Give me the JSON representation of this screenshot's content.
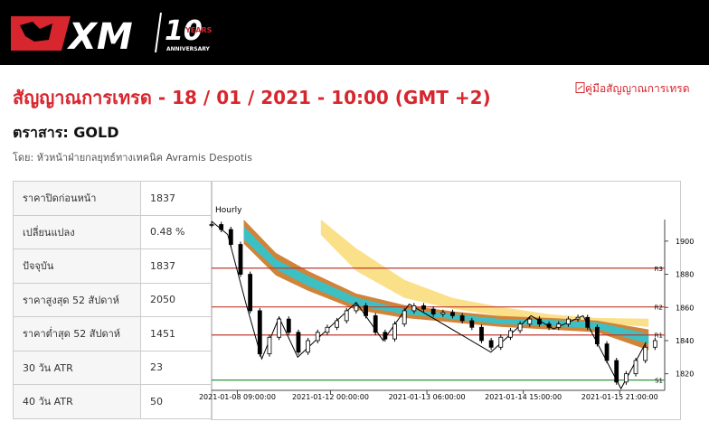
{
  "header": {
    "logo": "XM",
    "anniversary_number": "10",
    "anniversary_years": "YEARS",
    "anniversary_word": "ANNIVERSARY"
  },
  "title": "สัญญาณการเทรด - 18 / 01 / 2021 - 10:00 (GMT +2)",
  "guide_link": "คู่มือสัญญาณการเทรด",
  "instrument": "ตราสาร: GOLD",
  "author": "โดย: หัวหน้าฝ่ายกลยุทธ์ทางเทคนิค Avramis Despotis",
  "table": {
    "rows": [
      [
        "ราคาปิดก่อนหน้า",
        "1837"
      ],
      [
        "เปลี่ยนแปลง",
        "0.48 %"
      ],
      [
        "ปัจจุบัน",
        "1837"
      ],
      [
        "ราคาสูงสุด 52 สัปดาห์",
        "2050"
      ],
      [
        "ราคาต่ำสุด 52 สัปดาห์",
        "1451"
      ],
      [
        "30 วัน ATR",
        "23"
      ],
      [
        "40 วัน ATR",
        "50"
      ]
    ]
  },
  "chart_data": {
    "type": "candlestick",
    "subtitle": "Hourly",
    "x": [
      0,
      3,
      6,
      9,
      12,
      15,
      18,
      21,
      24,
      27,
      30,
      33,
      36,
      39,
      42,
      45,
      48,
      51,
      54,
      57,
      60,
      63,
      66,
      69,
      72,
      75,
      78,
      81,
      84,
      87,
      90,
      93,
      96,
      99,
      102,
      105,
      108,
      111,
      114,
      117,
      120,
      123,
      126,
      129,
      132,
      135,
      138
    ],
    "values": [
      1910,
      1907,
      1898,
      1880,
      1858,
      1832,
      1842,
      1853,
      1845,
      1833,
      1840,
      1845,
      1848,
      1852,
      1858,
      1861,
      1855,
      1845,
      1841,
      1850,
      1858,
      1861,
      1859,
      1856,
      1857,
      1855,
      1852,
      1848,
      1840,
      1836,
      1842,
      1846,
      1850,
      1853,
      1850,
      1848,
      1850,
      1853,
      1854,
      1848,
      1838,
      1828,
      1815,
      1820,
      1828,
      1836,
      1840
    ],
    "zigzag": {
      "color": "#000000",
      "x": [
        0,
        5,
        10.6,
        15.6,
        21,
        26.8,
        45,
        53.4,
        61.5,
        86.9,
        99.4,
        106.4,
        115.6,
        127.4,
        135.2
      ],
      "values": [
        1912,
        1904,
        1863,
        1829,
        1854,
        1830,
        1863,
        1840,
        1862,
        1833,
        1855,
        1847,
        1855,
        1811,
        1839
      ]
    },
    "bands": [
      {
        "color": "#fbe08a",
        "x": [
          34,
          45,
          60,
          75,
          90,
          105,
          120,
          136
        ],
        "upper": [
          1913,
          1895.6,
          1876.6,
          1865.7,
          1860.3,
          1855.9,
          1853.7,
          1853.2
        ],
        "lower": [
          1903.8,
          1882,
          1865.7,
          1859.2,
          1854.8,
          1852.1,
          1850.5,
          1848.3
        ]
      },
      {
        "color": "#d0843a",
        "x": [
          10,
          20,
          30,
          45,
          60,
          75,
          90,
          105,
          120,
          136
        ],
        "upper": [
          1913,
          1892.9,
          1882,
          1868.4,
          1861.4,
          1857.6,
          1854.8,
          1853.7,
          1852.1,
          1846.7
        ],
        "lower": [
          1898.4,
          1879.3,
          1870.1,
          1858.6,
          1853.7,
          1851,
          1848.3,
          1846.7,
          1845,
          1834.2
        ]
      },
      {
        "color": "#3cc0c4",
        "x": [
          10,
          20,
          30,
          45,
          60,
          75,
          90,
          105,
          120,
          136
        ],
        "upper": [
          1909,
          1889,
          1879,
          1866,
          1859,
          1856,
          1853,
          1852.5,
          1851,
          1844
        ],
        "lower": [
          1901,
          1883,
          1873,
          1861,
          1856,
          1853,
          1850,
          1849,
          1847,
          1838
        ]
      }
    ],
    "levels": [
      {
        "name": "R3",
        "value": 1883.7,
        "color": "#c0392b"
      },
      {
        "name": "R2",
        "value": 1860.3,
        "color": "#c0392b"
      },
      {
        "name": "R1",
        "value": 1843.4,
        "color": "#c0392b"
      },
      {
        "name": "S1",
        "value": 1816.2,
        "color": "#2e9a3a"
      }
    ],
    "xlim": [
      0,
      141
    ],
    "ylim": [
      1810,
      1913
    ],
    "yticks": [
      1820,
      1840,
      1860,
      1880,
      1900
    ],
    "xticks": [
      {
        "value": 8,
        "label": "2021-01-08 09:00:00"
      },
      {
        "value": 37,
        "label": "2021-01-12 00:00:00"
      },
      {
        "value": 67,
        "label": "2021-01-13 06:00:00"
      },
      {
        "value": 97,
        "label": "2021-01-14 15:00:00"
      },
      {
        "value": 127,
        "label": "2021-01-15 21:00:00"
      }
    ]
  }
}
